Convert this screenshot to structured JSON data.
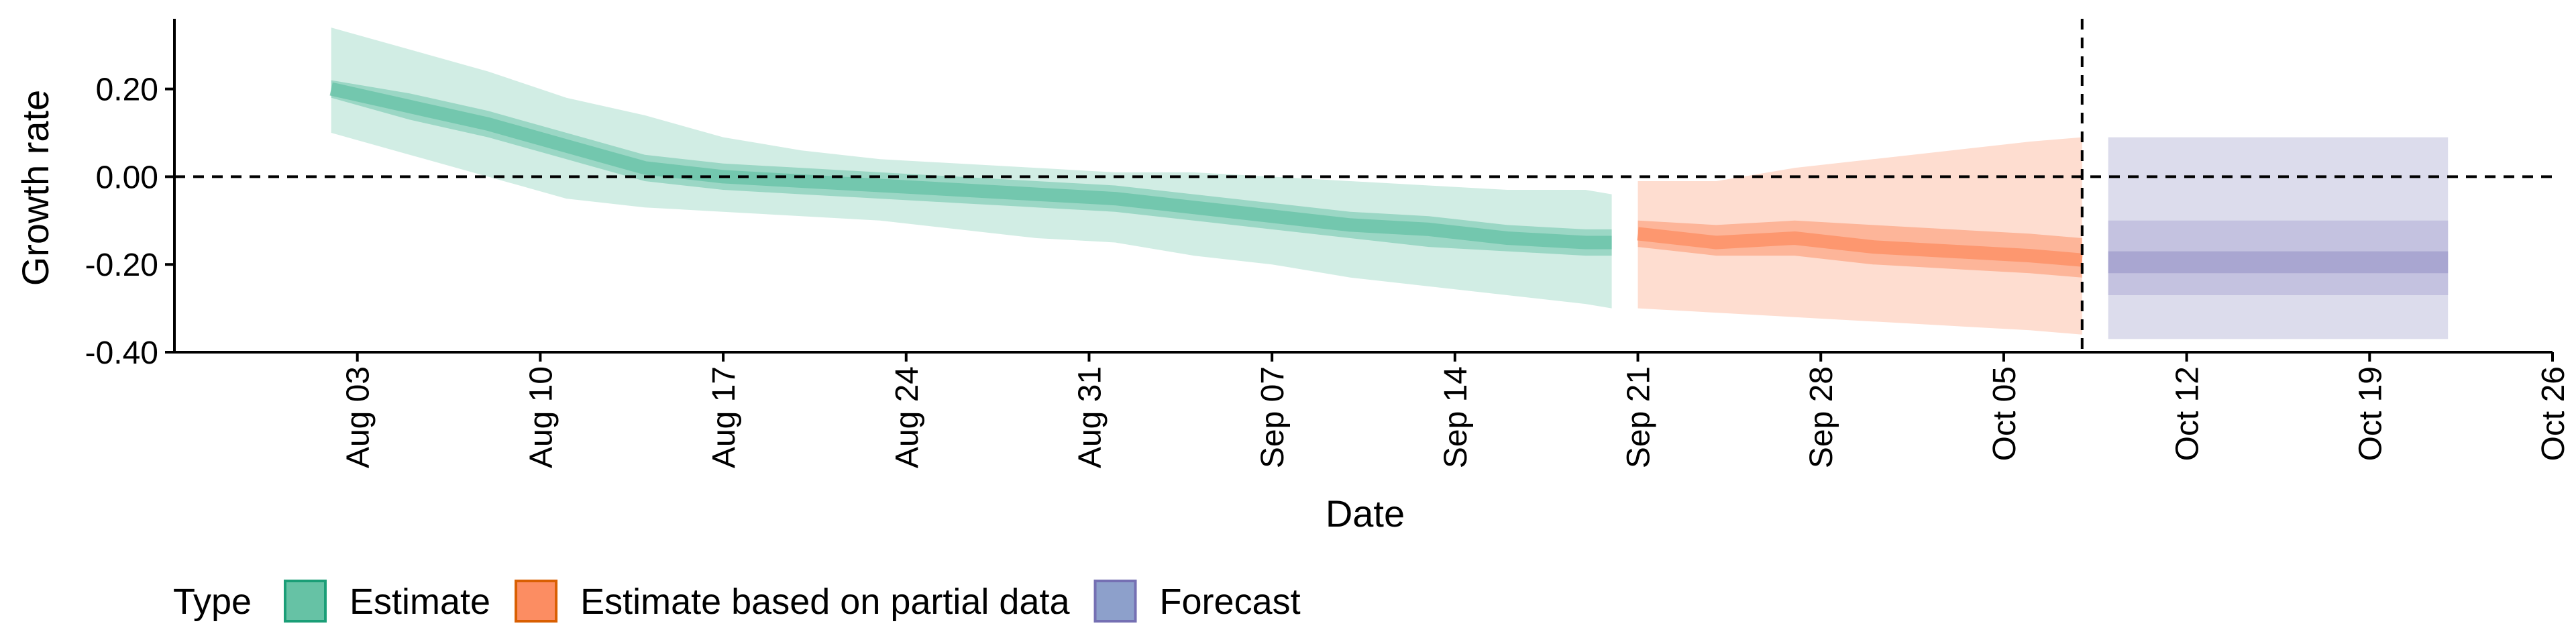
{
  "chart_data": {
    "type": "area",
    "title": "",
    "xlabel": "Date",
    "ylabel": "Growth rate",
    "x_ticks": [
      "Aug 03",
      "Aug 10",
      "Aug 17",
      "Aug 24",
      "Aug 31",
      "Sep 07",
      "Sep 14",
      "Sep 21",
      "Sep 28",
      "Oct 05",
      "Oct 12",
      "Oct 19",
      "Oct 26"
    ],
    "y_ticks": [
      "-0.40",
      "-0.20",
      "0.00",
      "0.20"
    ],
    "ylim": [
      -0.4,
      0.36
    ],
    "xlim": [
      "2020-07-27",
      "2020-10-26"
    ],
    "reference_lines": {
      "horizontal_y": 0.0,
      "vertical_date": "2020-10-08"
    },
    "legend": {
      "title": "Type",
      "position": "bottom-left"
    },
    "series": [
      {
        "name": "Estimate",
        "color_fill": "#66c2a5",
        "color_border": "#1b9e77",
        "dates": [
          "2020-08-02",
          "2020-08-05",
          "2020-08-08",
          "2020-08-11",
          "2020-08-14",
          "2020-08-17",
          "2020-08-20",
          "2020-08-23",
          "2020-08-26",
          "2020-08-29",
          "2020-09-01",
          "2020-09-04",
          "2020-09-07",
          "2020-09-10",
          "2020-09-13",
          "2020-09-16",
          "2020-09-19",
          "2020-09-20"
        ],
        "median": [
          0.2,
          0.16,
          0.12,
          0.07,
          0.02,
          0.0,
          -0.01,
          -0.02,
          -0.03,
          -0.04,
          -0.05,
          -0.07,
          -0.09,
          -0.11,
          -0.12,
          -0.14,
          -0.15,
          -0.15
        ],
        "lower_50": [
          0.18,
          0.13,
          0.09,
          0.04,
          -0.01,
          -0.03,
          -0.04,
          -0.05,
          -0.06,
          -0.07,
          -0.08,
          -0.1,
          -0.12,
          -0.14,
          -0.16,
          -0.17,
          -0.18,
          -0.18
        ],
        "upper_50": [
          0.22,
          0.19,
          0.15,
          0.1,
          0.05,
          0.03,
          0.02,
          0.01,
          0.0,
          -0.01,
          -0.02,
          -0.04,
          -0.06,
          -0.08,
          -0.09,
          -0.11,
          -0.12,
          -0.12
        ],
        "lower_90": [
          0.1,
          0.05,
          0.0,
          -0.05,
          -0.07,
          -0.08,
          -0.09,
          -0.1,
          -0.12,
          -0.14,
          -0.15,
          -0.18,
          -0.2,
          -0.23,
          -0.25,
          -0.27,
          -0.29,
          -0.3
        ],
        "upper_90": [
          0.34,
          0.29,
          0.24,
          0.18,
          0.14,
          0.09,
          0.06,
          0.04,
          0.03,
          0.02,
          0.01,
          0.01,
          0.0,
          -0.01,
          -0.02,
          -0.03,
          -0.03,
          -0.04
        ]
      },
      {
        "name": "Estimate based on partial data",
        "color_fill": "#fc8d62",
        "color_border": "#d95f02",
        "dates": [
          "2020-09-21",
          "2020-09-24",
          "2020-09-27",
          "2020-09-30",
          "2020-10-03",
          "2020-10-06",
          "2020-10-08"
        ],
        "median": [
          -0.13,
          -0.15,
          -0.14,
          -0.16,
          -0.17,
          -0.18,
          -0.19
        ],
        "lower_50": [
          -0.16,
          -0.18,
          -0.18,
          -0.2,
          -0.21,
          -0.22,
          -0.23
        ],
        "upper_50": [
          -0.1,
          -0.11,
          -0.1,
          -0.11,
          -0.12,
          -0.13,
          -0.14
        ],
        "lower_90": [
          -0.3,
          -0.31,
          -0.32,
          -0.33,
          -0.34,
          -0.35,
          -0.36
        ],
        "upper_90": [
          -0.01,
          -0.01,
          0.02,
          0.04,
          0.06,
          0.08,
          0.09
        ]
      },
      {
        "name": "Forecast",
        "color_fill": "#8da0cb",
        "color_border": "#7570b3",
        "dates": [
          "2020-10-09",
          "2020-10-22"
        ],
        "median": [
          -0.195,
          -0.195
        ],
        "lower_50": [
          -0.17,
          -0.17
        ],
        "upper_50": [
          -0.1,
          -0.1
        ],
        "lower_90": [
          -0.37,
          -0.37
        ],
        "upper_90": [
          0.09,
          0.09
        ],
        "lower_inner": [
          -0.22,
          -0.22
        ],
        "upper_inner": [
          -0.17,
          -0.17
        ],
        "lower_mid": [
          -0.27,
          -0.27
        ],
        "upper_mid": [
          -0.1,
          -0.1
        ]
      }
    ]
  }
}
